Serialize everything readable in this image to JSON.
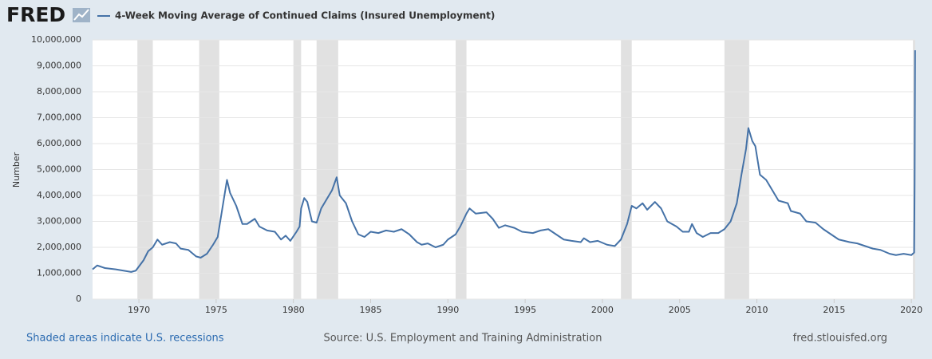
{
  "brand": "FRED",
  "chart_data": {
    "type": "line",
    "y_axis_label": "Number",
    "footer": {
      "left": "Shaded areas indicate U.S. recessions",
      "center": "Source: U.S. Employment and Training Administration",
      "right": "fred.stlouisfed.org"
    },
    "x": [
      1967.0,
      1967.3,
      1967.8,
      1968.5,
      1969.0,
      1969.5,
      1969.8,
      1970.3,
      1970.6,
      1970.9,
      1971.2,
      1971.5,
      1972.0,
      1972.4,
      1972.7,
      1973.2,
      1973.7,
      1974.0,
      1974.4,
      1974.8,
      1975.1,
      1975.4,
      1975.7,
      1975.9,
      1976.3,
      1976.7,
      1977.0,
      1977.5,
      1977.8,
      1978.3,
      1978.8,
      1979.2,
      1979.5,
      1979.8,
      1980.2,
      1980.4,
      1980.5,
      1980.7,
      1980.9,
      1981.2,
      1981.5,
      1981.8,
      1982.1,
      1982.5,
      1982.8,
      1983.0,
      1983.4,
      1983.8,
      1984.2,
      1984.6,
      1985.0,
      1985.5,
      1986.0,
      1986.5,
      1987.0,
      1987.5,
      1988.0,
      1988.3,
      1988.7,
      1989.2,
      1989.7,
      1990.0,
      1990.5,
      1990.8,
      1991.2,
      1991.4,
      1991.8,
      1992.5,
      1992.9,
      1993.3,
      1993.7,
      1994.3,
      1994.8,
      1995.5,
      1996.0,
      1996.5,
      1997.0,
      1997.5,
      1998.0,
      1998.6,
      1998.8,
      1999.2,
      1999.7,
      2000.3,
      2000.8,
      2001.2,
      2001.6,
      2001.9,
      2002.2,
      2002.6,
      2002.9,
      2003.4,
      2003.8,
      2004.2,
      2004.8,
      2005.2,
      2005.6,
      2005.8,
      2006.1,
      2006.5,
      2007.0,
      2007.5,
      2007.9,
      2008.3,
      2008.7,
      2009.0,
      2009.3,
      2009.45,
      2009.7,
      2009.9,
      2010.2,
      2010.6,
      2011.0,
      2011.4,
      2012.0,
      2012.2,
      2012.8,
      2013.2,
      2013.8,
      2014.3,
      2014.8,
      2015.3,
      2016.0,
      2016.5,
      2017.0,
      2017.5,
      2018.0,
      2018.6,
      2019.0,
      2019.5,
      2020.0,
      2020.18,
      2020.21,
      2020.24
    ],
    "series": [
      {
        "name": "4-Week Moving Average of Continued Claims (Insured Unemployment)",
        "color": "#4572a7",
        "values": [
          1150000,
          1300000,
          1200000,
          1150000,
          1100000,
          1050000,
          1100000,
          1500000,
          1850000,
          2000000,
          2300000,
          2100000,
          2200000,
          2150000,
          1950000,
          1900000,
          1650000,
          1600000,
          1750000,
          2100000,
          2400000,
          3500000,
          4600000,
          4100000,
          3600000,
          2900000,
          2900000,
          3100000,
          2800000,
          2650000,
          2600000,
          2300000,
          2450000,
          2250000,
          2600000,
          2800000,
          3500000,
          3900000,
          3750000,
          3000000,
          2950000,
          3500000,
          3800000,
          4200000,
          4700000,
          4000000,
          3700000,
          3000000,
          2500000,
          2400000,
          2600000,
          2550000,
          2650000,
          2600000,
          2700000,
          2500000,
          2200000,
          2100000,
          2150000,
          2000000,
          2100000,
          2300000,
          2500000,
          2800000,
          3300000,
          3500000,
          3300000,
          3350000,
          3100000,
          2750000,
          2850000,
          2750000,
          2600000,
          2550000,
          2650000,
          2700000,
          2500000,
          2300000,
          2250000,
          2200000,
          2350000,
          2200000,
          2250000,
          2100000,
          2050000,
          2300000,
          2900000,
          3600000,
          3500000,
          3700000,
          3450000,
          3750000,
          3500000,
          3000000,
          2800000,
          2600000,
          2600000,
          2900000,
          2550000,
          2400000,
          2550000,
          2550000,
          2700000,
          3000000,
          3700000,
          4800000,
          5800000,
          6600000,
          6100000,
          5900000,
          4800000,
          4600000,
          4200000,
          3800000,
          3700000,
          3400000,
          3300000,
          3000000,
          2950000,
          2700000,
          2500000,
          2300000,
          2200000,
          2150000,
          2050000,
          1950000,
          1900000,
          1750000,
          1700000,
          1750000,
          1700000,
          1800000,
          4500000,
          9600000
        ]
      }
    ],
    "recessions": [
      [
        1969.9,
        1970.9
      ],
      [
        1973.9,
        1975.2
      ],
      [
        1980.0,
        1980.5
      ],
      [
        1981.5,
        1982.9
      ],
      [
        1990.5,
        1991.2
      ],
      [
        2001.2,
        2001.9
      ],
      [
        2007.9,
        2009.5
      ],
      [
        2020.1,
        2020.25
      ]
    ],
    "xlim": [
      1967.0,
      2020.25
    ],
    "xticks": [
      1970,
      1975,
      1980,
      1985,
      1990,
      1995,
      2000,
      2005,
      2010,
      2015,
      2020
    ],
    "ylim": [
      0,
      10000000
    ],
    "yticks": [
      0,
      {
        "value": 1000000,
        "label": "1,000,000"
      },
      {
        "value": 2000000,
        "label": "2,000,000"
      },
      {
        "value": 3000000,
        "label": "3,000,000"
      },
      {
        "value": 4000000,
        "label": "4,000,000"
      },
      {
        "value": 5000000,
        "label": "5,000,000"
      },
      {
        "value": 6000000,
        "label": "6,000,000"
      },
      {
        "value": 7000000,
        "label": "7,000,000"
      },
      {
        "value": 8000000,
        "label": "8,000,000"
      },
      {
        "value": 9000000,
        "label": "9,000,000"
      },
      {
        "value": 10000000,
        "label": "10,000,000"
      }
    ],
    "grid": true
  }
}
